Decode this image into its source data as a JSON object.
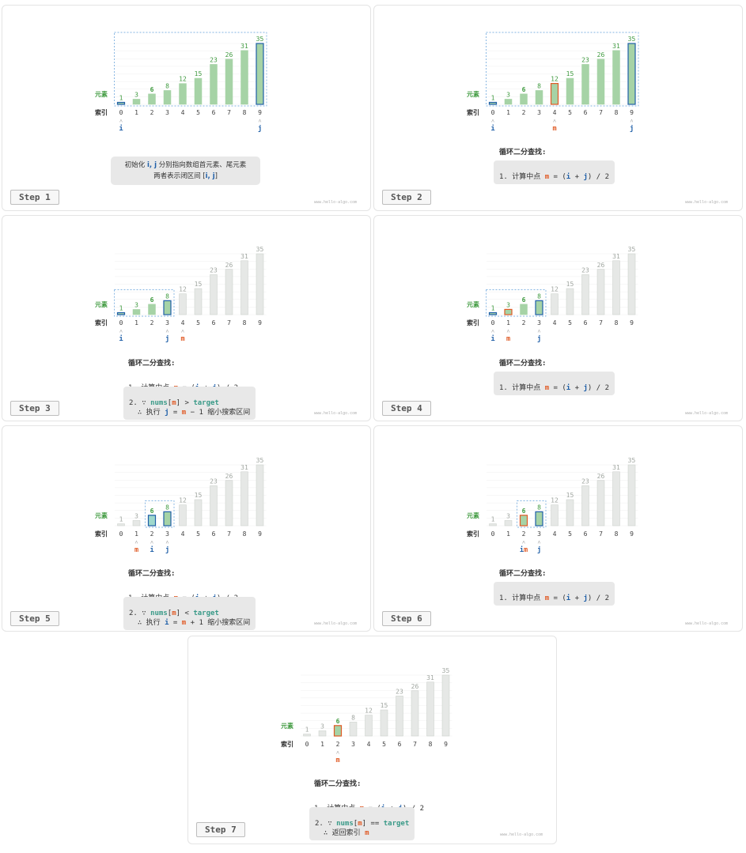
{
  "elements": [
    1,
    3,
    6,
    8,
    12,
    15,
    23,
    26,
    31,
    35
  ],
  "indices": [
    "0",
    "1",
    "2",
    "3",
    "4",
    "5",
    "6",
    "7",
    "8",
    "9"
  ],
  "row_label_elements": "元素",
  "row_label_indices": "索引",
  "watermark": "www.hello-algo.com",
  "colors": {
    "green": "#a6d3a6",
    "green_text": "#3f9a3f",
    "gray": "#e3e6e3",
    "gray_stroke": "#c8cec8",
    "blue": "#1f5fa8",
    "red": "#e05a25",
    "teal": "#58b8a8",
    "dashed": "#5a9bd8"
  },
  "steps": [
    {
      "label": "Step 1"
    },
    {
      "label": "Step 2"
    },
    {
      "label": "Step 3"
    },
    {
      "label": "Step 4"
    },
    {
      "label": "Step 5"
    },
    {
      "label": "Step 6"
    },
    {
      "label": "Step 7"
    }
  ],
  "text": {
    "init_line1_a": "初始化 ",
    "init_line1_ij": "i, j",
    "init_line1_b": " 分别指向数组首元素、尾元素",
    "init_line2_a": "两者表示闭区间 [",
    "init_line2_ij": "i, j",
    "init_line2_b": "]",
    "loop_title": "循环二分查找:",
    "calc_prefix": "1. 计算中点 ",
    "calc_m": "m",
    "calc_eq": " = (",
    "calc_i": "i",
    "calc_plus": " + ",
    "calc_j": "j",
    "calc_tail": ") / 2",
    "cmp_prefix": "2. ∵ ",
    "nums": "nums",
    "lb": "[",
    "rb": "]",
    "gt": " > ",
    "lt": " < ",
    "eqeq": " == ",
    "target": "target",
    "therefore_exec": "  ∴ 执行 ",
    "j_eq": "j",
    "i_eq": "i",
    "assign": " = ",
    "minus1": " − 1",
    "plus1": " + 1",
    "shrink": " 缩小搜索区间",
    "return": "  ∴ 返回索引 ",
    "m_label": "m",
    "i_label": "i",
    "j_label": "j",
    "im_label": "im"
  }
}
